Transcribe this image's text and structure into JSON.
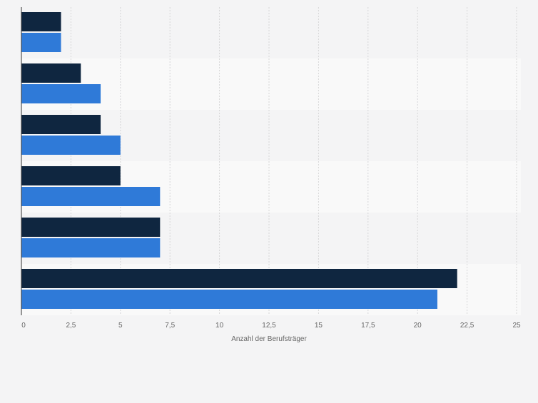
{
  "chart_data": {
    "type": "bar",
    "orientation": "horizontal",
    "categories": [
      "",
      "",
      "",
      "",
      "",
      ""
    ],
    "series": [
      {
        "name": "",
        "color": "#0f2640",
        "values": [
          2,
          3,
          4,
          5,
          7,
          22
        ]
      },
      {
        "name": "",
        "color": "#2f7ad8",
        "values": [
          2,
          4,
          5,
          7,
          7,
          21
        ]
      }
    ],
    "xlim": [
      0,
      25
    ],
    "xticks": [
      "0",
      "2,5",
      "5",
      "7,5",
      "10",
      "12,5",
      "15",
      "17,5",
      "20",
      "22,5",
      "25"
    ],
    "xlabel": "Anzahl der Berufsträger",
    "ylabel": "",
    "title": "",
    "grid": true,
    "legend": "none"
  },
  "colors": {
    "background": "#f4f4f5",
    "band_light": "#f9f9f9",
    "band_dark": "#f4f4f5",
    "grid": "#d6d6d8",
    "axis": "#333333",
    "tick_text": "#666666"
  }
}
